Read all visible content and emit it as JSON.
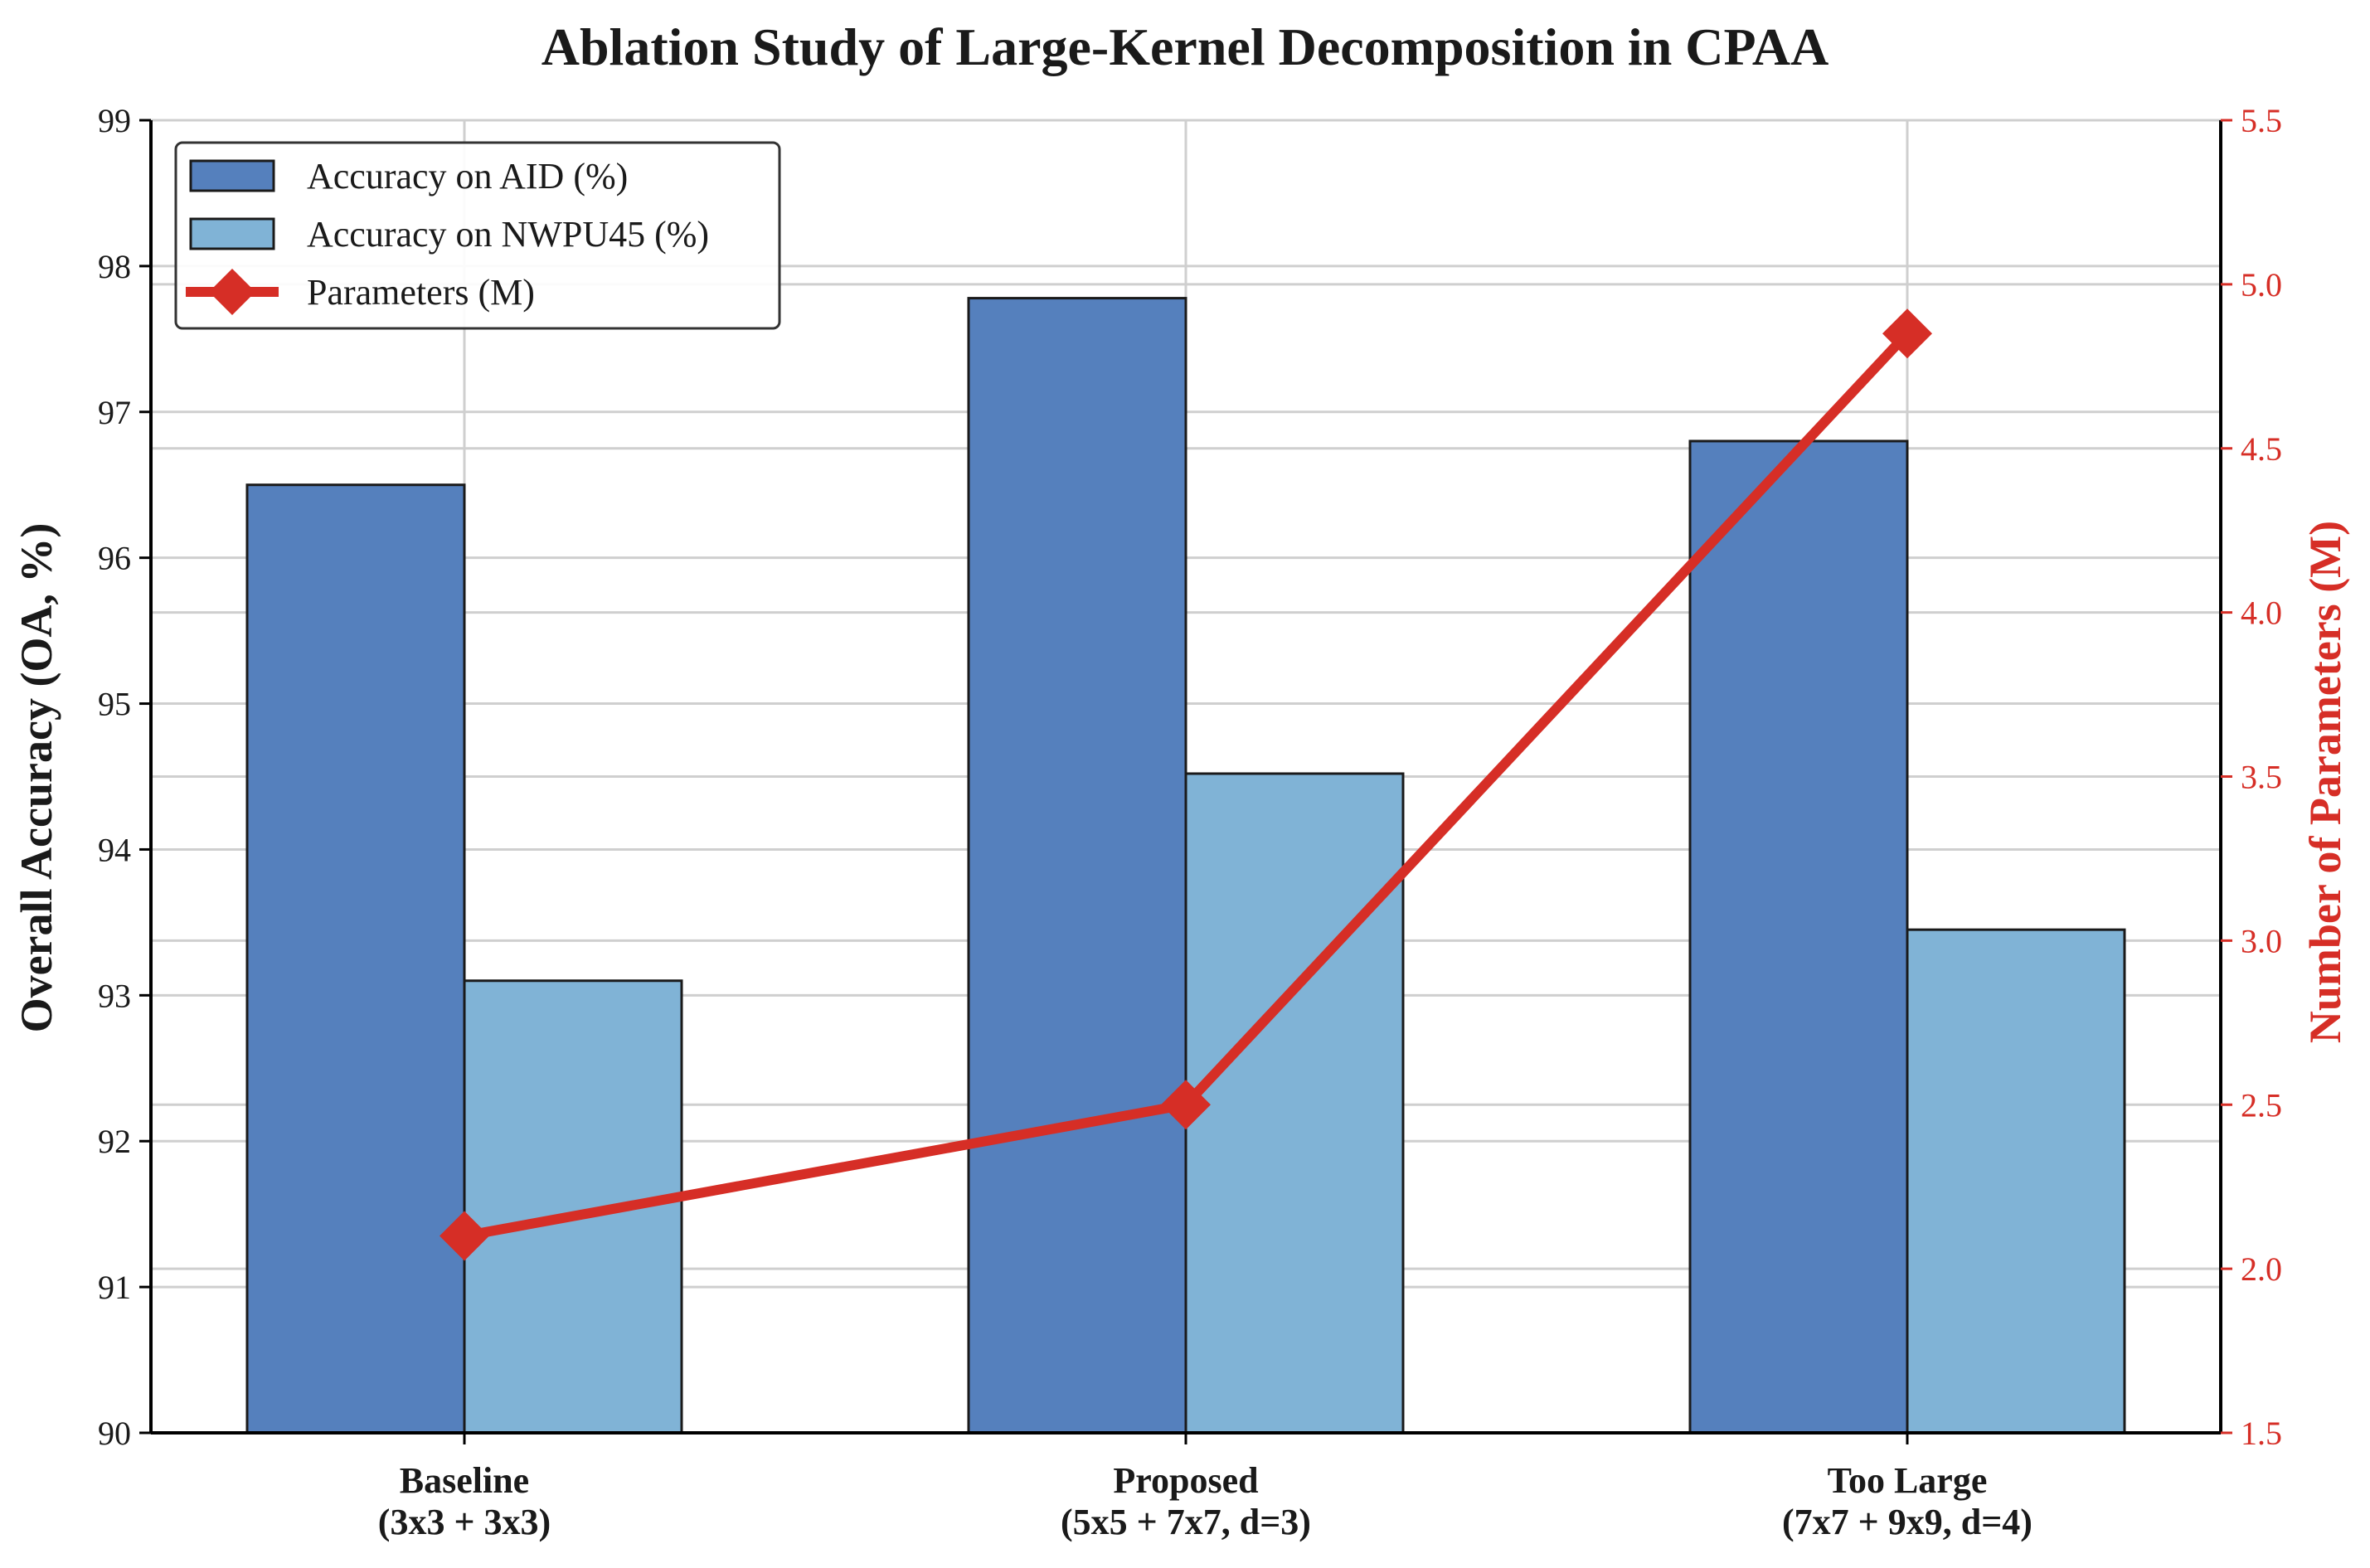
{
  "chart_data": {
    "type": "bar",
    "title": "Ablation Study of Large-Kernel Decomposition in CPAA",
    "categories": [
      [
        "Baseline",
        "(3x3 + 3x3)"
      ],
      [
        "Proposed",
        "(5x5 + 7x7, d=3)"
      ],
      [
        "Too Large",
        "(7x7 + 9x9, d=4)"
      ]
    ],
    "series": [
      {
        "name": "Accuracy on AID (%)",
        "kind": "bar",
        "axis": "left",
        "color": "#5580bd",
        "values": [
          96.5,
          97.78,
          96.8
        ]
      },
      {
        "name": "Accuracy on NWPU45 (%)",
        "kind": "bar",
        "axis": "left",
        "color": "#80b3d6",
        "values": [
          93.1,
          94.52,
          93.45
        ]
      },
      {
        "name": "Parameters (M)",
        "kind": "line",
        "marker": "diamond",
        "axis": "right",
        "color": "#d62e26",
        "values": [
          2.1,
          2.5,
          4.85
        ]
      }
    ],
    "ylabel": "Overall Accuracy (OA, %)",
    "ylim": [
      90,
      99
    ],
    "yticks": [
      "90",
      "91",
      "92",
      "93",
      "94",
      "95",
      "96",
      "97",
      "98",
      "99"
    ],
    "y2label": "Number of Parameters (M)",
    "y2lim": [
      1.5,
      5.5
    ],
    "y2ticks": [
      "1.5",
      "2.0",
      "2.5",
      "3.0",
      "3.5",
      "4.0",
      "4.5",
      "5.0",
      "5.5"
    ],
    "legend": "top-left",
    "grid": true,
    "colors": {
      "left_axis_text": "#1a1a1a",
      "right_axis_text": "#d62e26"
    }
  }
}
